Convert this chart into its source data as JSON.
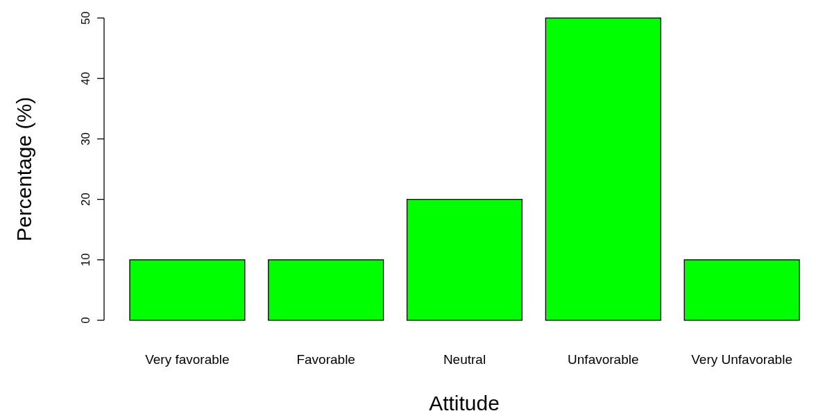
{
  "chart_data": {
    "type": "bar",
    "xlabel": "Attitude",
    "ylabel": "Percentage (%)",
    "categories": [
      "Very favorable",
      "Favorable",
      "Neutral",
      "Unfavorable",
      "Very Unfavorable"
    ],
    "values": [
      10,
      10,
      20,
      50,
      10
    ],
    "color": "#00ff00",
    "ylim": [
      0,
      50
    ],
    "yticks": [
      0,
      10,
      20,
      30,
      40,
      50
    ],
    "grid": false
  }
}
